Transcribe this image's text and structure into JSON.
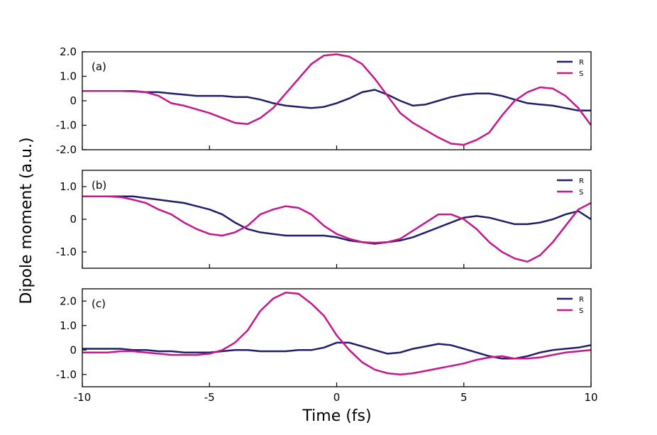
{
  "figure": {
    "xlabel": "Time (fs)",
    "ylabel": "Dipole moment (a.u.)"
  },
  "colors": {
    "R": "#1f1f6b",
    "S": "#c8168c"
  },
  "chart_data": [
    {
      "type": "line",
      "panel_label": "(a)",
      "xlim": [
        -10,
        10
      ],
      "ylim": [
        -2.0,
        2.0
      ],
      "x_ticks": [
        -10,
        -5,
        0,
        5,
        10
      ],
      "y_ticks": [
        {
          "value": 2.0,
          "label": "2.0"
        },
        {
          "value": 1.0,
          "label": "1.0"
        },
        {
          "value": 0,
          "label": "0"
        },
        {
          "value": -1.0,
          "label": "-1.0"
        },
        {
          "value": -2.0,
          "label": "-2.0"
        }
      ],
      "legend": {
        "location": "upper right",
        "entries": [
          "R",
          "S"
        ]
      },
      "x": [
        -10,
        -9.5,
        -9,
        -8.5,
        -8,
        -7.5,
        -7,
        -6.5,
        -6,
        -5.5,
        -5,
        -4.5,
        -4,
        -3.5,
        -3,
        -2.5,
        -2,
        -1.5,
        -1,
        -0.5,
        0,
        0.5,
        1,
        1.5,
        2,
        2.5,
        3,
        3.5,
        4,
        4.5,
        5,
        5.5,
        6,
        6.5,
        7,
        7.5,
        8,
        8.5,
        9,
        9.5,
        10
      ],
      "series": [
        {
          "name": "R",
          "values": [
            0.4,
            0.4,
            0.4,
            0.4,
            0.4,
            0.35,
            0.35,
            0.3,
            0.25,
            0.2,
            0.2,
            0.2,
            0.15,
            0.15,
            0.05,
            -0.1,
            -0.2,
            -0.25,
            -0.3,
            -0.25,
            -0.1,
            0.1,
            0.35,
            0.45,
            0.25,
            0.0,
            -0.2,
            -0.15,
            0.0,
            0.15,
            0.25,
            0.3,
            0.3,
            0.2,
            0.05,
            -0.1,
            -0.15,
            -0.2,
            -0.3,
            -0.4,
            -0.4
          ]
        },
        {
          "name": "S",
          "values": [
            0.4,
            0.4,
            0.4,
            0.4,
            0.38,
            0.35,
            0.2,
            -0.1,
            -0.2,
            -0.35,
            -0.5,
            -0.7,
            -0.9,
            -0.95,
            -0.7,
            -0.3,
            0.3,
            0.9,
            1.5,
            1.85,
            1.9,
            1.8,
            1.5,
            0.9,
            0.2,
            -0.5,
            -0.9,
            -1.2,
            -1.5,
            -1.75,
            -1.8,
            -1.6,
            -1.3,
            -0.6,
            0.0,
            0.35,
            0.55,
            0.5,
            0.2,
            -0.3,
            -1.0
          ]
        }
      ]
    },
    {
      "type": "line",
      "panel_label": "(b)",
      "xlim": [
        -10,
        10
      ],
      "ylim": [
        -1.5,
        1.5
      ],
      "x_ticks": [
        -10,
        -5,
        0,
        5,
        10
      ],
      "y_ticks": [
        {
          "value": 1.0,
          "label": "1.0"
        },
        {
          "value": 0,
          "label": "0"
        },
        {
          "value": -1.0,
          "label": "-1.0"
        }
      ],
      "legend": {
        "location": "upper right",
        "entries": [
          "R",
          "S"
        ]
      },
      "x": [
        -10,
        -9.5,
        -9,
        -8.5,
        -8,
        -7.5,
        -7,
        -6.5,
        -6,
        -5.5,
        -5,
        -4.5,
        -4,
        -3.5,
        -3,
        -2.5,
        -2,
        -1.5,
        -1,
        -0.5,
        0,
        0.5,
        1,
        1.5,
        2,
        2.5,
        3,
        3.5,
        4,
        4.5,
        5,
        5.5,
        6,
        6.5,
        7,
        7.5,
        8,
        8.5,
        9,
        9.5,
        10
      ],
      "series": [
        {
          "name": "R",
          "values": [
            0.7,
            0.7,
            0.7,
            0.7,
            0.7,
            0.65,
            0.6,
            0.55,
            0.5,
            0.4,
            0.3,
            0.15,
            -0.1,
            -0.3,
            -0.4,
            -0.45,
            -0.5,
            -0.5,
            -0.5,
            -0.5,
            -0.55,
            -0.65,
            -0.7,
            -0.75,
            -0.7,
            -0.65,
            -0.55,
            -0.4,
            -0.25,
            -0.1,
            0.05,
            0.1,
            0.05,
            -0.05,
            -0.15,
            -0.15,
            -0.1,
            0.0,
            0.15,
            0.25,
            0.0
          ]
        },
        {
          "name": "S",
          "values": [
            0.7,
            0.7,
            0.7,
            0.68,
            0.6,
            0.5,
            0.3,
            0.15,
            -0.1,
            -0.3,
            -0.45,
            -0.5,
            -0.4,
            -0.2,
            0.15,
            0.3,
            0.4,
            0.35,
            0.15,
            -0.2,
            -0.45,
            -0.6,
            -0.7,
            -0.72,
            -0.7,
            -0.6,
            -0.35,
            -0.1,
            0.15,
            0.15,
            0.0,
            -0.3,
            -0.7,
            -1.0,
            -1.2,
            -1.3,
            -1.1,
            -0.7,
            -0.2,
            0.3,
            0.5
          ]
        }
      ]
    },
    {
      "type": "line",
      "panel_label": "(c)",
      "xlim": [
        -10,
        10
      ],
      "ylim": [
        -1.5,
        2.5
      ],
      "x_ticks": [
        -10,
        -5,
        0,
        5,
        10
      ],
      "y_ticks": [
        {
          "value": 2.0,
          "label": "2.0"
        },
        {
          "value": 1.0,
          "label": "1.0"
        },
        {
          "value": 0,
          "label": "0"
        },
        {
          "value": -1.0,
          "label": "-1.0"
        }
      ],
      "legend": {
        "location": "upper right",
        "entries": [
          "R",
          "S"
        ]
      },
      "x": [
        -10,
        -9.5,
        -9,
        -8.5,
        -8,
        -7.5,
        -7,
        -6.5,
        -6,
        -5.5,
        -5,
        -4.5,
        -4,
        -3.5,
        -3,
        -2.5,
        -2,
        -1.5,
        -1,
        -0.5,
        0,
        0.5,
        1,
        1.5,
        2,
        2.5,
        3,
        3.5,
        4,
        4.5,
        5,
        5.5,
        6,
        6.5,
        7,
        7.5,
        8,
        8.5,
        9,
        9.5,
        10
      ],
      "series": [
        {
          "name": "R",
          "values": [
            0.05,
            0.05,
            0.05,
            0.05,
            0.0,
            0.0,
            -0.05,
            -0.05,
            -0.1,
            -0.1,
            -0.1,
            -0.05,
            0.0,
            0.0,
            -0.05,
            -0.05,
            -0.05,
            0.0,
            0.0,
            0.1,
            0.3,
            0.3,
            0.15,
            0.0,
            -0.15,
            -0.1,
            0.05,
            0.15,
            0.25,
            0.2,
            0.05,
            -0.1,
            -0.25,
            -0.35,
            -0.35,
            -0.25,
            -0.1,
            0.0,
            0.05,
            0.1,
            0.2
          ]
        },
        {
          "name": "S",
          "values": [
            -0.1,
            -0.1,
            -0.1,
            -0.05,
            -0.05,
            -0.1,
            -0.15,
            -0.2,
            -0.2,
            -0.2,
            -0.15,
            0.0,
            0.3,
            0.8,
            1.6,
            2.1,
            2.35,
            2.3,
            1.9,
            1.4,
            0.6,
            0.0,
            -0.5,
            -0.8,
            -0.95,
            -1.0,
            -0.95,
            -0.85,
            -0.75,
            -0.65,
            -0.55,
            -0.4,
            -0.3,
            -0.25,
            -0.35,
            -0.35,
            -0.3,
            -0.2,
            -0.1,
            -0.05,
            0.0
          ]
        }
      ]
    }
  ]
}
